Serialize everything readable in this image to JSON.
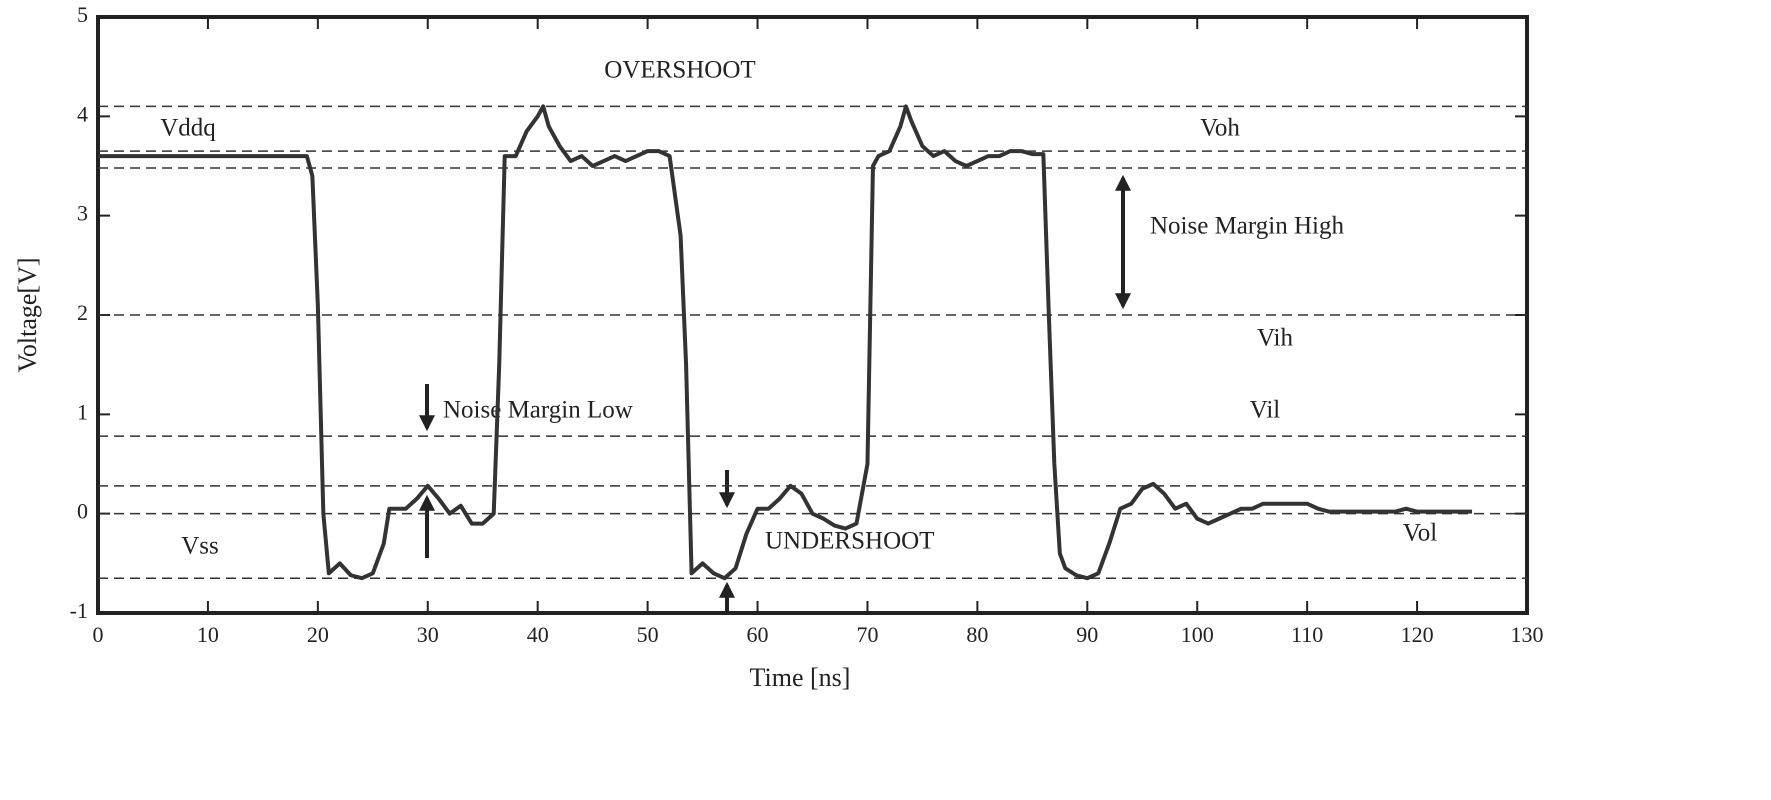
{
  "chart_data": {
    "type": "line",
    "xlabel": "Time [ns]",
    "ylabel": "Voltage[V]",
    "xlim": [
      0,
      130
    ],
    "xticks": [
      0,
      10,
      20,
      30,
      40,
      50,
      60,
      70,
      80,
      90,
      100,
      110,
      120,
      130
    ],
    "ylim": [
      -1,
      5
    ],
    "yticks": [
      -1,
      0,
      1,
      2,
      3,
      4,
      5
    ],
    "hlines": [
      4.1,
      3.65,
      3.48,
      2.0,
      0.78,
      0.28,
      0.0,
      -0.65
    ],
    "annotations": [
      "OVERSHOOT",
      "Vddq",
      "Voh",
      "Noise Margin High",
      "Vih",
      "Noise Margin Low",
      "Vil",
      "Vss",
      "UNDERSHOOT",
      "Vol"
    ],
    "series": [
      {
        "color": "#333333",
        "x": [
          0,
          19,
          19.5,
          20,
          20.5,
          21,
          22,
          23,
          24,
          25,
          26,
          26.5,
          27,
          28,
          29,
          30,
          31,
          32,
          33,
          34,
          35,
          36,
          36.5,
          37,
          38,
          39,
          40,
          40.5,
          41,
          42,
          43,
          44,
          45,
          46,
          47,
          48,
          49,
          50,
          51,
          52,
          53,
          53.5,
          54,
          55,
          56,
          57,
          58,
          59,
          60,
          61,
          62,
          63,
          64,
          65,
          66,
          67,
          68,
          69,
          70,
          70.5,
          71,
          72,
          73,
          73.5,
          74,
          75,
          76,
          77,
          78,
          79,
          80,
          81,
          82,
          83,
          84,
          85,
          86,
          86.5,
          87,
          87.5,
          88,
          89,
          90,
          91,
          92,
          93,
          94,
          95,
          96,
          97,
          98,
          99,
          100,
          101,
          102,
          103,
          104,
          105,
          106,
          107,
          108,
          109,
          110,
          111,
          112,
          114,
          116,
          118,
          119,
          120,
          125
        ],
        "values": [
          3.6,
          3.6,
          3.4,
          2.1,
          0,
          -0.6,
          -0.5,
          -0.62,
          -0.65,
          -0.6,
          -0.3,
          0.05,
          0.05,
          0.05,
          0.15,
          0.28,
          0.15,
          0.0,
          0.08,
          -0.1,
          -0.1,
          0.0,
          1.5,
          3.6,
          3.6,
          3.85,
          4.0,
          4.1,
          3.9,
          3.7,
          3.55,
          3.6,
          3.5,
          3.55,
          3.6,
          3.55,
          3.6,
          3.65,
          3.65,
          3.6,
          2.8,
          1.5,
          -0.6,
          -0.5,
          -0.6,
          -0.65,
          -0.55,
          -0.2,
          0.05,
          0.05,
          0.15,
          0.28,
          0.2,
          0.0,
          -0.05,
          -0.12,
          -0.15,
          -0.1,
          0.5,
          3.5,
          3.6,
          3.65,
          3.9,
          4.1,
          3.95,
          3.7,
          3.6,
          3.65,
          3.55,
          3.5,
          3.55,
          3.6,
          3.6,
          3.65,
          3.65,
          3.62,
          3.62,
          2.0,
          0.5,
          -0.4,
          -0.55,
          -0.62,
          -0.65,
          -0.6,
          -0.3,
          0.05,
          0.1,
          0.25,
          0.3,
          0.2,
          0.05,
          0.1,
          -0.05,
          -0.1,
          -0.05,
          0.0,
          0.05,
          0.05,
          0.1,
          0.1,
          0.1,
          0.1,
          0.1,
          0.05,
          0.02,
          0.02,
          0.02,
          0.02,
          0.05,
          0.02,
          0.02
        ]
      }
    ]
  }
}
